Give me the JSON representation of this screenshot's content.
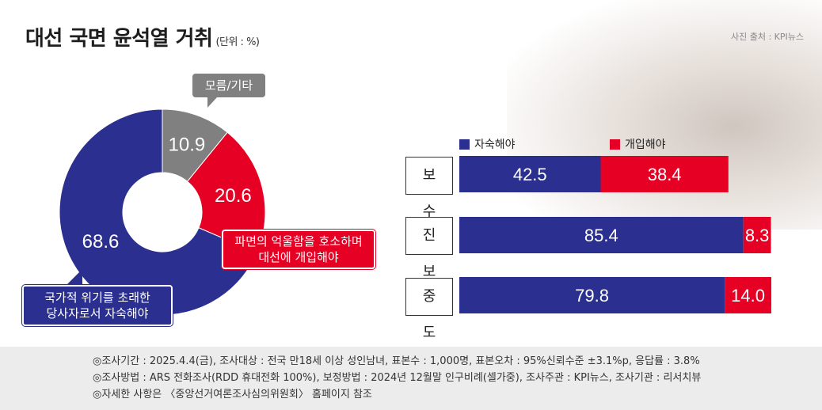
{
  "title": "대선 국면 윤석열 거취",
  "unit": "(단위 : %)",
  "credit": "사진 출처 : KPI뉴스",
  "donut": {
    "callout_other": "모름/기타",
    "callout_yes_line1": "파면의 억울함을 호소하며",
    "callout_yes_line2": "대선에 개입해야",
    "callout_no_line1": "국가적 위기를 초래한",
    "callout_no_line2": "당사자로서 자숙해야"
  },
  "legend": {
    "no": "자숙해야",
    "yes": "개입해야"
  },
  "colors": {
    "no": "#2b2f8f",
    "yes": "#e60023",
    "other": "#808080"
  },
  "chart_data": [
    {
      "type": "pie",
      "categories": [
        "자숙해야",
        "개입해야",
        "모름/기타"
      ],
      "values": [
        68.6,
        20.6,
        10.9
      ],
      "labels": [
        "68.6",
        "20.6",
        "10.9"
      ],
      "colors": [
        "#2b2f8f",
        "#e60023",
        "#808080"
      ]
    },
    {
      "type": "bar",
      "stacked": true,
      "orientation": "horizontal",
      "categories": [
        "보 수",
        "진 보",
        "중 도"
      ],
      "series": [
        {
          "name": "자숙해야",
          "values": [
            42.5,
            85.4,
            79.8
          ],
          "labels": [
            "42.5",
            "85.4",
            "79.8"
          ],
          "color": "#2b2f8f"
        },
        {
          "name": "개입해야",
          "values": [
            38.4,
            8.3,
            14.0
          ],
          "labels": [
            "38.4",
            "8.3",
            "14.0"
          ],
          "color": "#e60023"
        }
      ],
      "xlim": [
        0,
        100
      ]
    }
  ],
  "footer": {
    "line1": "◎조사기간 : 2025.4.4(금), 조사대상 : 전국 만18세 이상 성인남녀, 표본수 : 1,000명, 표본오차 : 95%신뢰수준 ±3.1%p, 응답률 : 3.8%",
    "line2": "◎조사방법 : ARS 전화조사(RDD 휴대전화 100%), 보정방법 : 2024년 12월말 인구비례(셀가중), 조사주관 : KPI뉴스, 조사기관 : 리서치뷰",
    "line3": "◎자세한 사항은 〈중앙선거여론조사심의위원회〉 홈페이지 참조"
  }
}
